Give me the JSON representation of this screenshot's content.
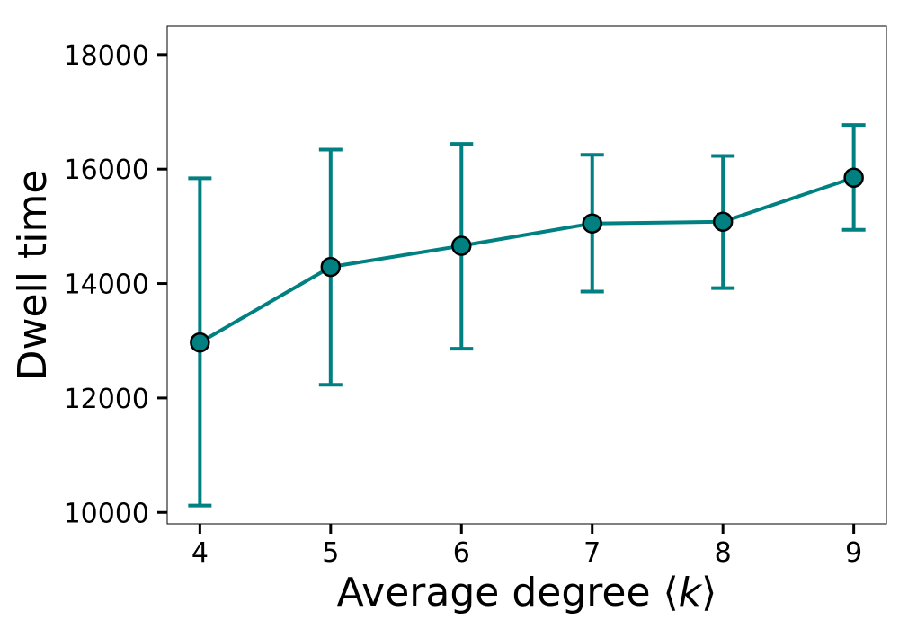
{
  "chart_data": {
    "type": "line",
    "title": "",
    "xlabel": "Average degree ⟨k⟩",
    "xlabel_prefix": "Average degree ⟨",
    "xlabel_var": "k",
    "xlabel_suffix": "⟩",
    "ylabel": "Dwell time",
    "xlim": [
      3.75,
      9.25
    ],
    "ylim": [
      9800,
      18500
    ],
    "xticks": [
      4,
      5,
      6,
      7,
      8,
      9
    ],
    "yticks": [
      10000,
      12000,
      14000,
      16000,
      18000
    ],
    "xtick_labels": [
      "4",
      "5",
      "6",
      "7",
      "8",
      "9"
    ],
    "ytick_labels": [
      "10000",
      "12000",
      "14000",
      "16000",
      "18000"
    ],
    "grid": false,
    "series": [
      {
        "name": "Dwell time",
        "color": "#008080",
        "marker_edge_color": "#000000",
        "x": [
          4,
          5,
          6,
          7,
          8,
          9
        ],
        "y": [
          12970,
          14290,
          14660,
          15050,
          15080,
          15850
        ],
        "error_low": [
          10120,
          12230,
          12860,
          13860,
          13920,
          14940
        ],
        "error_high": [
          15840,
          16340,
          16440,
          16250,
          16230,
          16770
        ]
      }
    ]
  }
}
